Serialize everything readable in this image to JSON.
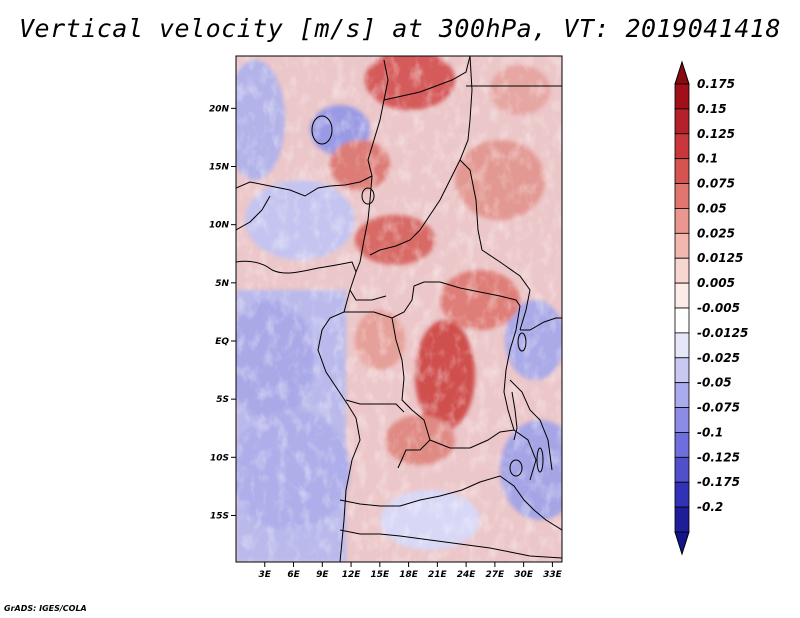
{
  "title": "Vertical velocity [m/s] at 300hPa, VT: 2019041418",
  "credit": "GrADS: IGES/COLA",
  "map": {
    "lat_range": [
      -19,
      24.5
    ],
    "lon_range": [
      0,
      34
    ],
    "lat_ticks": [
      {
        "value": 20,
        "label": "20N"
      },
      {
        "value": 15,
        "label": "15N"
      },
      {
        "value": 10,
        "label": "10N"
      },
      {
        "value": 5,
        "label": "5N"
      },
      {
        "value": 0,
        "label": "EQ"
      },
      {
        "value": -5,
        "label": "5S"
      },
      {
        "value": -10,
        "label": "10S"
      },
      {
        "value": -15,
        "label": "15S"
      }
    ],
    "lon_ticks": [
      {
        "value": 3,
        "label": "3E"
      },
      {
        "value": 6,
        "label": "6E"
      },
      {
        "value": 9,
        "label": "9E"
      },
      {
        "value": 12,
        "label": "12E"
      },
      {
        "value": 15,
        "label": "15E"
      },
      {
        "value": 18,
        "label": "18E"
      },
      {
        "value": 21,
        "label": "21E"
      },
      {
        "value": 24,
        "label": "24E"
      },
      {
        "value": 27,
        "label": "27E"
      },
      {
        "value": 30,
        "label": "30E"
      },
      {
        "value": 33,
        "label": "33E"
      }
    ]
  },
  "colorbar": {
    "levels": [
      {
        "label": "0.175",
        "color": "#a00f1a"
      },
      {
        "label": "0.15",
        "color": "#b5202a"
      },
      {
        "label": "0.125",
        "color": "#c9373c"
      },
      {
        "label": "0.1",
        "color": "#d65450"
      },
      {
        "label": "0.075",
        "color": "#e0766e"
      },
      {
        "label": "0.05",
        "color": "#e9978f"
      },
      {
        "label": "0.025",
        "color": "#f2b8b0"
      },
      {
        "label": "0.0125",
        "color": "#f8d6d0"
      },
      {
        "label": "0.005",
        "color": "#fcebe8"
      },
      {
        "label": "-0.005",
        "color": "#ffffff"
      },
      {
        "label": "-0.0125",
        "color": "#e6e6fa"
      },
      {
        "label": "-0.025",
        "color": "#c8c8f3"
      },
      {
        "label": "-0.05",
        "color": "#aaaaee"
      },
      {
        "label": "-0.075",
        "color": "#8c8ce6"
      },
      {
        "label": "-0.1",
        "color": "#6e6edc"
      },
      {
        "label": "-0.125",
        "color": "#5050cd"
      },
      {
        "label": "-0.175",
        "color": "#3232b9"
      },
      {
        "label": "-0.2",
        "color": "#1e1e9a"
      }
    ],
    "top_color": "#8a0a12",
    "bottom_color": "#14148a"
  }
}
